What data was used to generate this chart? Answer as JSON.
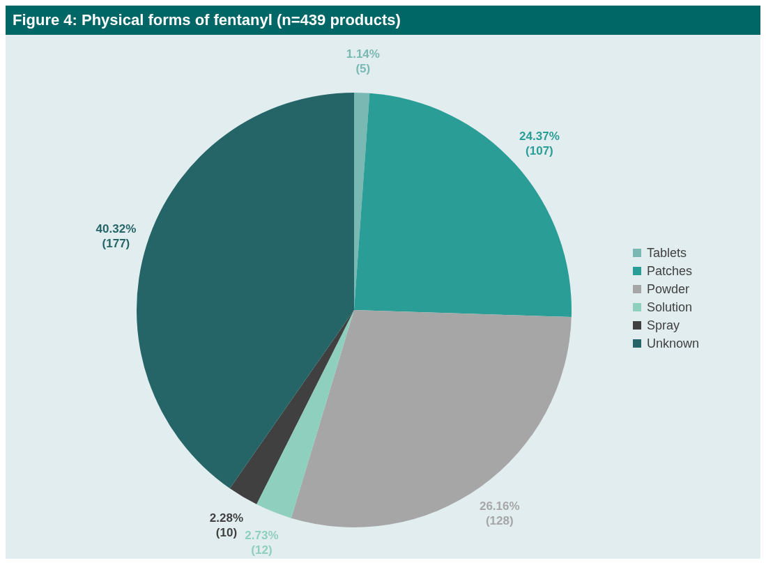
{
  "chart_data": {
    "type": "pie",
    "title": "Figure 4: Physical forms of fentanyl (n=439 products)",
    "categories": [
      "Tablets",
      "Patches",
      "Powder",
      "Solution",
      "Spray",
      "Unknown"
    ],
    "values": [
      5,
      107,
      128,
      12,
      10,
      177
    ],
    "colors": [
      "#7ab8b4",
      "#2a9d96",
      "#a6a6a6",
      "#8fcfbd",
      "#404040",
      "#256567"
    ],
    "value_labels": [
      "1.14%\n(5)",
      "24.37%\n(107)",
      "26.16%\n(128)",
      "2.73%\n(12)",
      "2.28%\n(10)",
      "40.32%\n(177)"
    ],
    "legend": "right"
  }
}
